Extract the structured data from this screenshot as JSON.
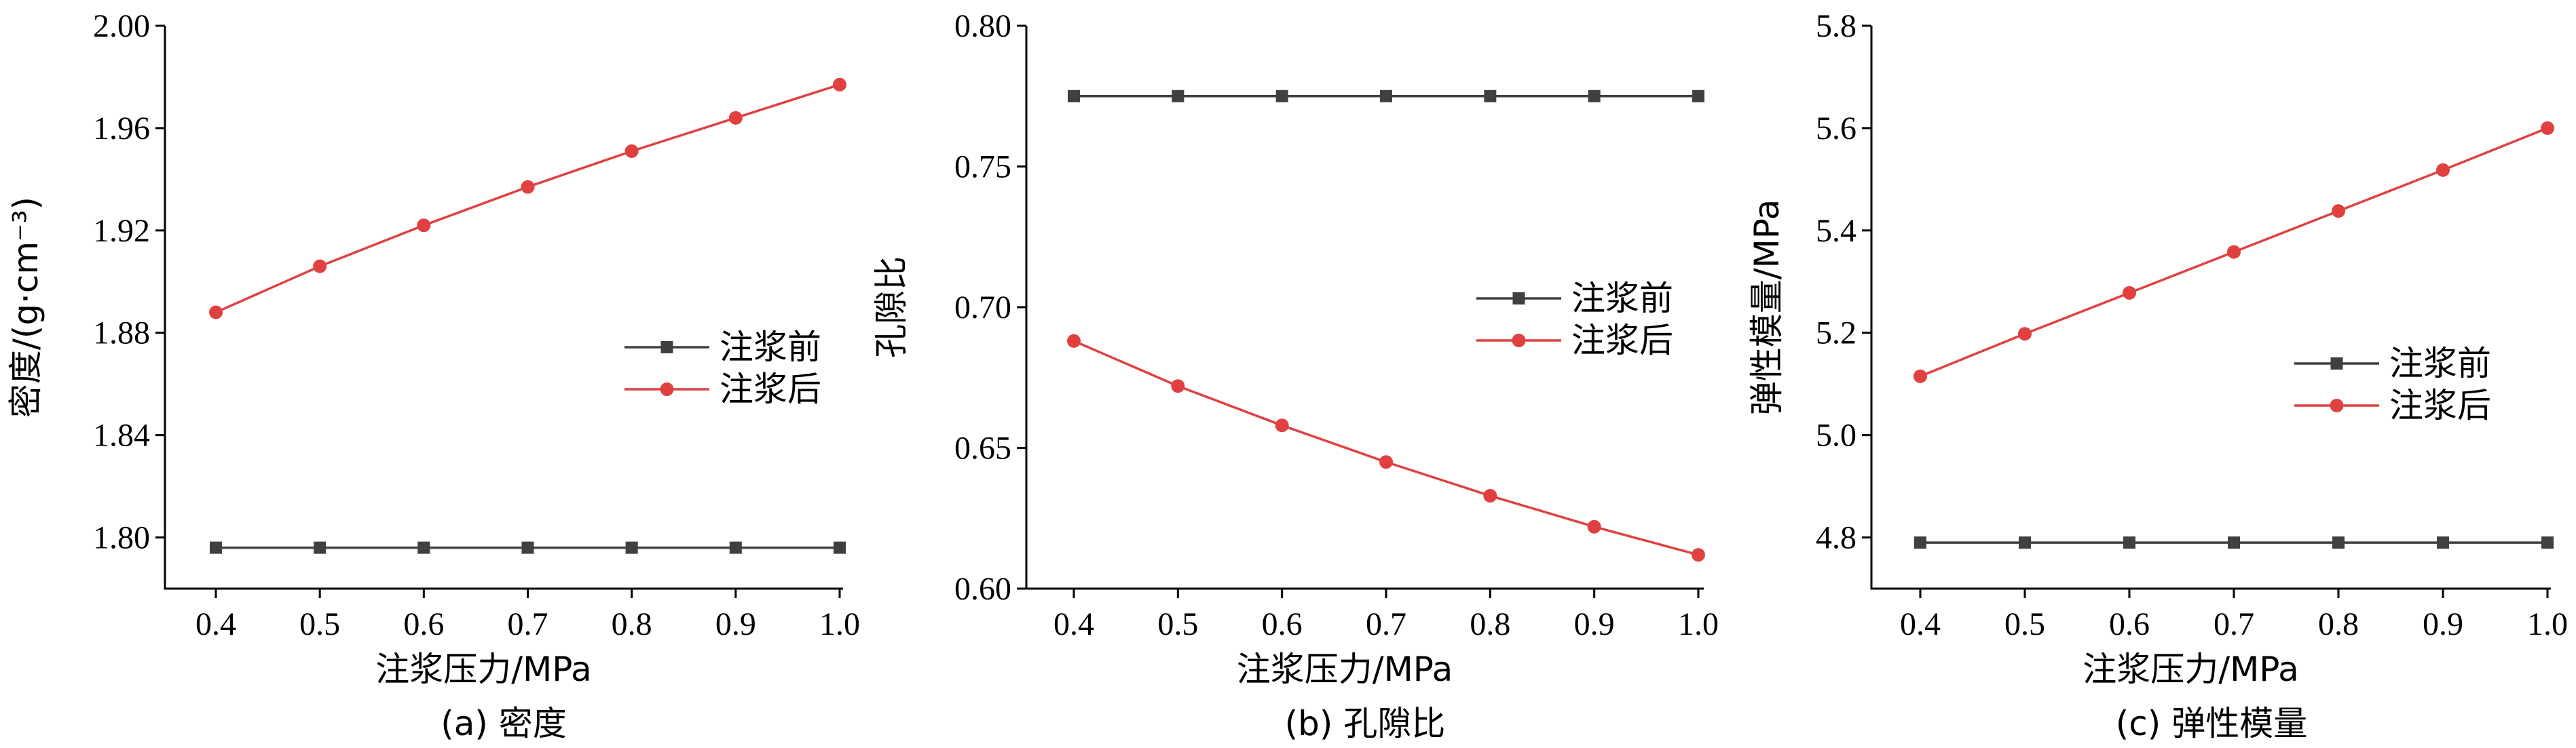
{
  "chart_data": [
    {
      "type": "line",
      "xlabel": "注浆压力/MPa",
      "ylabel": "密度/(g·cm⁻³)",
      "caption": "(a) 密度",
      "x": [
        0.4,
        0.5,
        0.6,
        0.7,
        0.8,
        0.9,
        1.0
      ],
      "x_ticks": [
        "0.4",
        "0.5",
        "0.6",
        "0.7",
        "0.8",
        "0.9",
        "1.0"
      ],
      "ylim": [
        1.78,
        2.0
      ],
      "y_ticks": [
        "1.80",
        "1.84",
        "1.88",
        "1.92",
        "1.96",
        "2.00"
      ],
      "legend_position": "center-right",
      "series": [
        {
          "name": "注浆前",
          "color": "#404040",
          "marker": "square",
          "values": [
            1.796,
            1.796,
            1.796,
            1.796,
            1.796,
            1.796,
            1.796
          ]
        },
        {
          "name": "注浆后",
          "color": "#e04040",
          "marker": "circle",
          "values": [
            1.888,
            1.906,
            1.922,
            1.937,
            1.951,
            1.964,
            1.977
          ]
        }
      ]
    },
    {
      "type": "line",
      "xlabel": "注浆压力/MPa",
      "ylabel": "孔隙比",
      "caption": "(b) 孔隙比",
      "x": [
        0.4,
        0.5,
        0.6,
        0.7,
        0.8,
        0.9,
        1.0
      ],
      "x_ticks": [
        "0.4",
        "0.5",
        "0.6",
        "0.7",
        "0.8",
        "0.9",
        "1.0"
      ],
      "ylim": [
        0.6,
        0.8
      ],
      "y_ticks": [
        "0.60",
        "0.65",
        "0.70",
        "0.75",
        "0.80"
      ],
      "legend_position": "center-right",
      "series": [
        {
          "name": "注浆前",
          "color": "#404040",
          "marker": "square",
          "values": [
            0.775,
            0.775,
            0.775,
            0.775,
            0.775,
            0.775,
            0.775
          ]
        },
        {
          "name": "注浆后",
          "color": "#e04040",
          "marker": "circle",
          "values": [
            0.688,
            0.672,
            0.658,
            0.645,
            0.633,
            0.622,
            0.612
          ]
        }
      ]
    },
    {
      "type": "line",
      "xlabel": "注浆压力/MPa",
      "ylabel": "弹性模量/MPa",
      "caption": "(c) 弹性模量",
      "x": [
        0.4,
        0.5,
        0.6,
        0.7,
        0.8,
        0.9,
        1.0
      ],
      "x_ticks": [
        "0.4",
        "0.5",
        "0.6",
        "0.7",
        "0.8",
        "0.9",
        "1.0"
      ],
      "ylim": [
        4.7,
        5.8
      ],
      "y_ticks": [
        "4.8",
        "5.0",
        "5.2",
        "5.4",
        "5.6",
        "5.8"
      ],
      "legend_position": "lower-right",
      "series": [
        {
          "name": "注浆前",
          "color": "#404040",
          "marker": "square",
          "values": [
            4.79,
            4.79,
            4.79,
            4.79,
            4.79,
            4.79,
            4.79
          ]
        },
        {
          "name": "注浆后",
          "color": "#e04040",
          "marker": "circle",
          "values": [
            5.115,
            5.198,
            5.278,
            5.358,
            5.438,
            5.518,
            5.6
          ]
        }
      ]
    }
  ]
}
